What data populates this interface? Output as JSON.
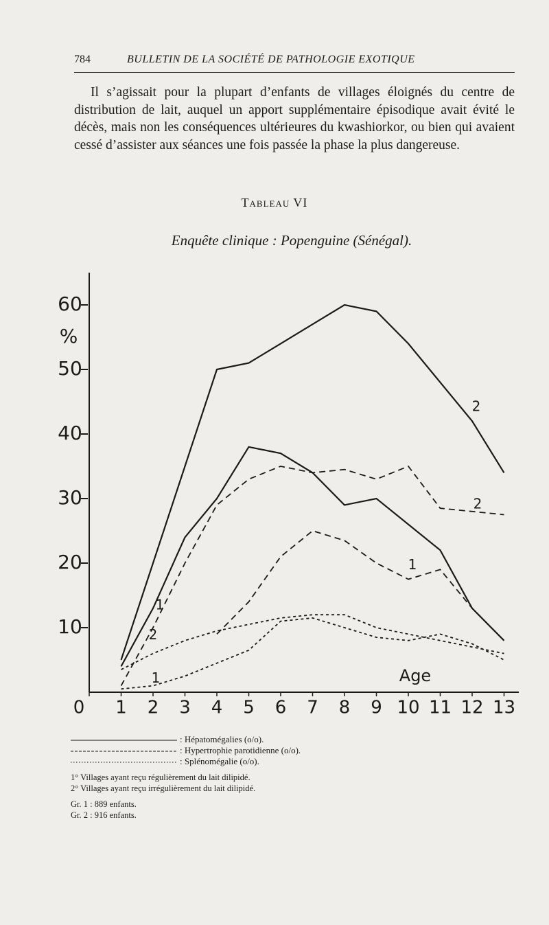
{
  "header": {
    "page_number": "784",
    "title": "BULLETIN DE LA SOCIÉTÉ DE PATHOLOGIE EXOTIQUE"
  },
  "paragraph": "Il s’agissait pour la plupart d’enfants de villages éloignés du centre de distribution de lait, auquel un apport supplémentaire épisodique avait évité le décès, mais non les conséquences ultérieures du kwashiorkor, ou bien qui avaient cessé d’assister aux séances une fois passée la phase la plus dangereuse.",
  "table_label": "Tableau VI",
  "chart_data": {
    "type": "line",
    "title": "Enquête clinique : Popenguine (Sénégal).",
    "x_label": "Age",
    "y_label": "%",
    "x": [
      1,
      2,
      3,
      4,
      5,
      6,
      7,
      8,
      9,
      10,
      11,
      12,
      13
    ],
    "xlim": [
      0,
      13
    ],
    "xticks": [
      0,
      1,
      2,
      3,
      4,
      5,
      6,
      7,
      8,
      9,
      10,
      11,
      12,
      13
    ],
    "ylim": [
      0,
      65
    ],
    "yticks": [
      10,
      20,
      30,
      40,
      50,
      60
    ],
    "series": [
      {
        "name": "1",
        "dash": "solid",
        "color": "#1a1a1a",
        "values": [
          4,
          13,
          24,
          30,
          38,
          37,
          34,
          29,
          30,
          26,
          22,
          13,
          8
        ]
      },
      {
        "name": "2",
        "dash": "solid",
        "color": "#1a1a1a",
        "values": [
          5,
          20,
          35,
          50,
          51,
          54,
          57,
          60,
          59,
          54,
          48,
          42,
          34
        ]
      },
      {
        "name": "1",
        "dash": "dashed",
        "color": "#1a1a1a",
        "values": [
          null,
          null,
          null,
          9,
          14,
          21,
          25,
          23.5,
          20,
          17.5,
          19,
          13,
          8
        ]
      },
      {
        "name": "2",
        "dash": "dashed",
        "color": "#1a1a1a",
        "values": [
          1,
          10,
          20,
          29,
          33,
          35,
          34,
          34.5,
          33,
          35,
          28.5,
          28,
          27.5
        ]
      },
      {
        "name": "1",
        "dash": "dotted",
        "color": "#1a1a1a",
        "values": [
          0.5,
          1,
          2.5,
          4.5,
          6.5,
          11,
          11.5,
          10,
          8.5,
          8,
          9,
          7.5,
          5
        ]
      },
      {
        "name": "2",
        "dash": "dotted",
        "color": "#1a1a1a",
        "values": [
          3.5,
          6,
          8,
          9.5,
          10.5,
          11.5,
          12,
          12,
          10,
          9,
          8,
          7,
          6
        ]
      }
    ]
  },
  "legend": [
    {
      "text": ": Hépatomégalies (o/o).",
      "dash": "solid"
    },
    {
      "text": ": Hypertrophie parotidienne (o/o).",
      "dash": "dashed"
    },
    {
      "text": ": Splénomégalie (o/o).",
      "dash": "dotted"
    }
  ],
  "notes": [
    "1° Villages ayant reçu régulièrement du lait dilipidé.",
    "2° Villages ayant reçu irrégulièrement du lait dilipidé."
  ],
  "groups": [
    "Gr. 1 : 889 enfants.",
    "Gr. 2 : 916 enfants."
  ]
}
